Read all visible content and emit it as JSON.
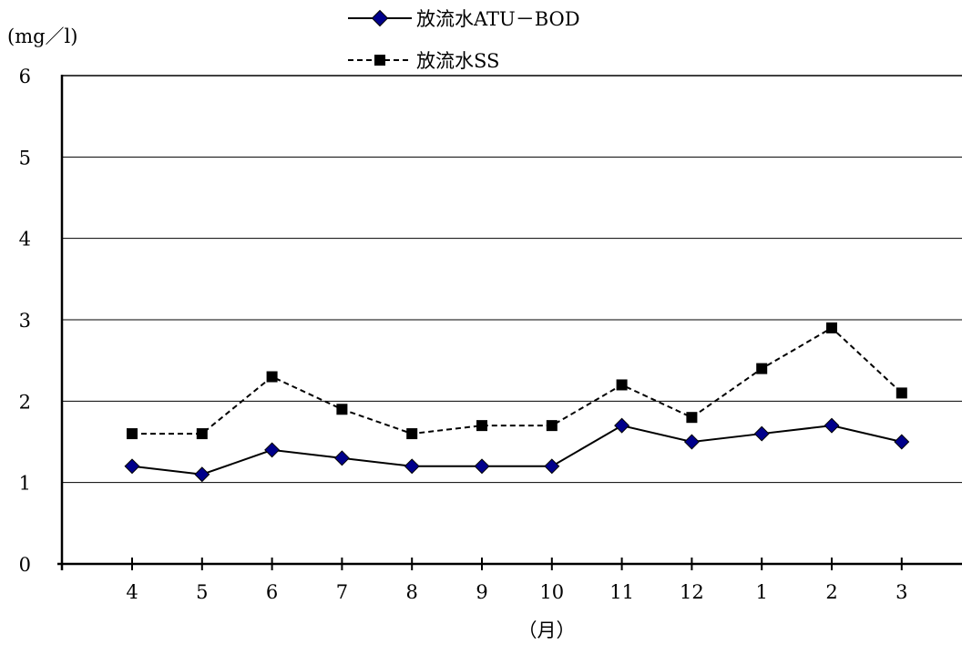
{
  "chart_data": {
    "type": "line",
    "categories": [
      "4",
      "5",
      "6",
      "7",
      "8",
      "9",
      "10",
      "11",
      "12",
      "1",
      "2",
      "3"
    ],
    "series": [
      {
        "name": "放流水ATU－BOD",
        "values": [
          1.2,
          1.1,
          1.4,
          1.3,
          1.2,
          1.2,
          1.2,
          1.7,
          1.5,
          1.6,
          1.7,
          1.5
        ],
        "color": "#00008b",
        "marker": "diamond",
        "line_style": "solid"
      },
      {
        "name": "放流水SS",
        "values": [
          1.6,
          1.6,
          2.3,
          1.9,
          1.6,
          1.7,
          1.7,
          2.2,
          1.8,
          2.4,
          2.9,
          2.1
        ],
        "color": "#000000",
        "marker": "square",
        "line_style": "dashed"
      }
    ],
    "xlabel": "（月）",
    "ylabel": "(mg／l)",
    "ylim": [
      0,
      6
    ],
    "yticks": [
      "0",
      "1",
      "2",
      "3",
      "4",
      "5",
      "6"
    ],
    "grid": true,
    "legend_position": "top-center"
  }
}
